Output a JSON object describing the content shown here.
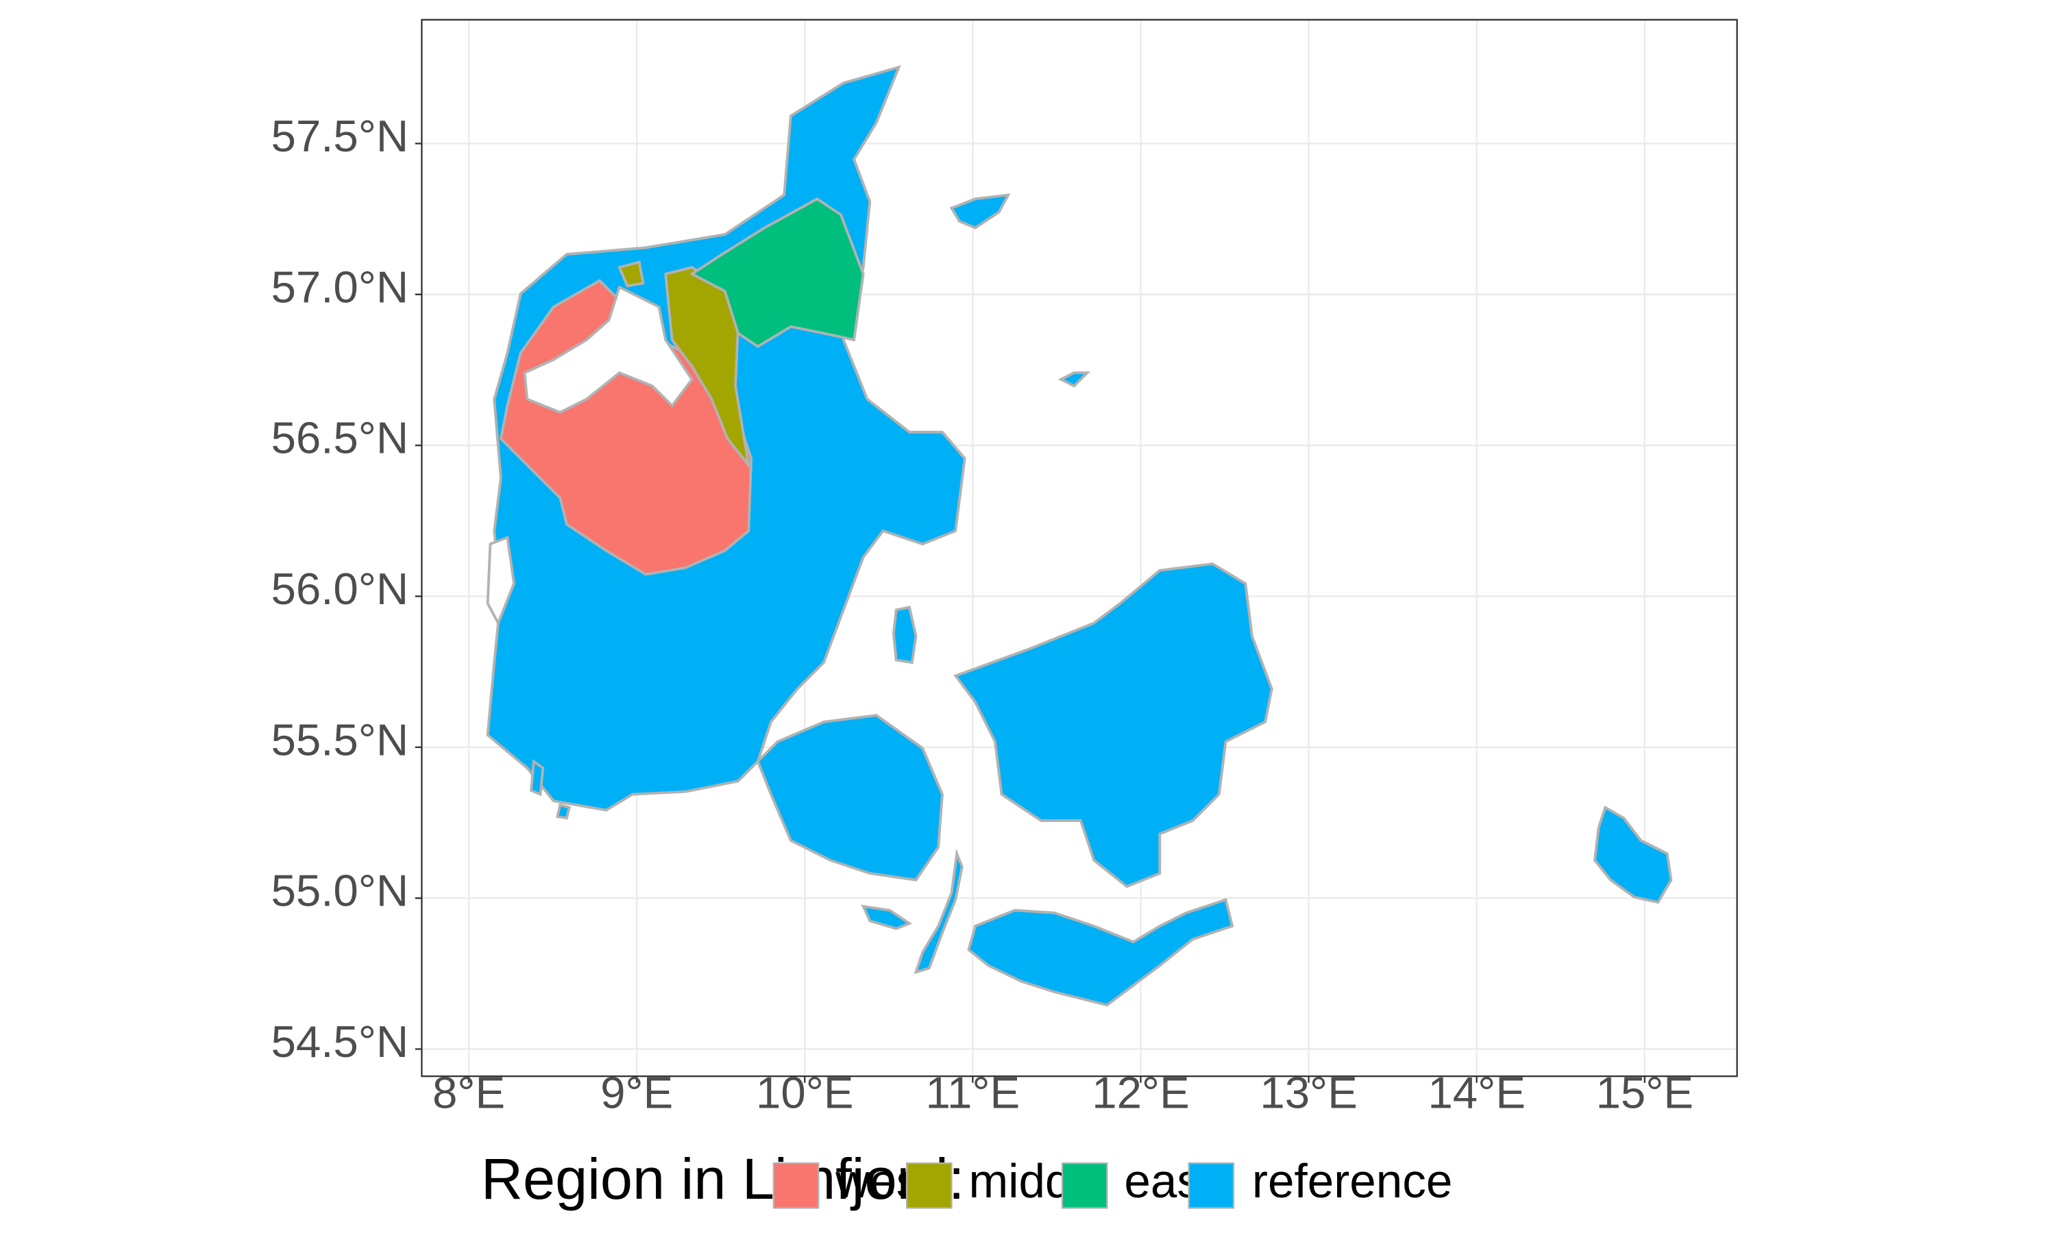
{
  "map": {
    "x_ticks": [
      {
        "value": 8,
        "label": "8°E"
      },
      {
        "value": 9,
        "label": "9°E"
      },
      {
        "value": 10,
        "label": "10°E"
      },
      {
        "value": 11,
        "label": "11°E"
      },
      {
        "value": 12,
        "label": "12°E"
      },
      {
        "value": 13,
        "label": "13°E"
      },
      {
        "value": 14,
        "label": "14°E"
      },
      {
        "value": 15,
        "label": "15°E"
      }
    ],
    "y_ticks": [
      {
        "value": 54.5,
        "label": "54.5°N"
      },
      {
        "value": 55.0,
        "label": "55.0°N"
      },
      {
        "value": 55.5,
        "label": "55.5°N"
      },
      {
        "value": 56.0,
        "label": "56.0°N"
      },
      {
        "value": 56.5,
        "label": "56.5°N"
      },
      {
        "value": 57.0,
        "label": "57.0°N"
      },
      {
        "value": 57.5,
        "label": "57.5°N"
      }
    ],
    "x_range": [
      7.72,
      15.55
    ],
    "y_range": [
      54.41,
      57.91
    ],
    "grid": true,
    "legend_position": "bottom",
    "border_color": "#b2b2b2",
    "legend": {
      "title": "Region in Limfjord:",
      "items": [
        {
          "key": "west",
          "label": "west",
          "color": "#F8766D"
        },
        {
          "key": "middle",
          "label": "middle",
          "color": "#A3A500"
        },
        {
          "key": "east",
          "label": "east",
          "color": "#00BF7D"
        },
        {
          "key": "reference",
          "label": "reference",
          "color": "#00B0F6"
        }
      ]
    }
  }
}
